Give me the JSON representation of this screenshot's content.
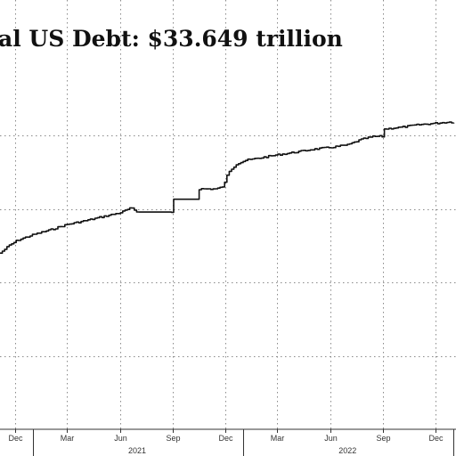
{
  "chart_data": {
    "type": "line",
    "title": "al US Debt: $33.649 trillion",
    "xlabel": "",
    "ylabel": "",
    "x_range": [
      "2020-11-05",
      "2023-01-05"
    ],
    "y_range": [
      0,
      100
    ],
    "grid": true,
    "legend": "none",
    "month_ticks": [
      {
        "label": "Dec",
        "date": "2020-12-01"
      },
      {
        "label": "Mar",
        "date": "2021-03-01"
      },
      {
        "label": "Jun",
        "date": "2021-06-01"
      },
      {
        "label": "Sep",
        "date": "2021-09-01"
      },
      {
        "label": "Dec",
        "date": "2021-12-01"
      },
      {
        "label": "Mar",
        "date": "2022-03-01"
      },
      {
        "label": "Jun",
        "date": "2022-06-01"
      },
      {
        "label": "Sep",
        "date": "2022-09-01"
      },
      {
        "label": "Dec",
        "date": "2022-12-01"
      }
    ],
    "year_labels": [
      {
        "label": "2021",
        "date": "2021-07-01"
      },
      {
        "label": "2022",
        "date": "2022-07-01"
      }
    ],
    "year_boundaries": [
      "2021-01-01",
      "2022-01-01",
      "2023-01-01"
    ],
    "series": [
      {
        "values": [
          {
            "x": "2020-11-05",
            "y": 48.0
          },
          {
            "x": "2020-11-20",
            "y": 50.0
          },
          {
            "x": "2020-12-05",
            "y": 51.5
          },
          {
            "x": "2021-01-01",
            "y": 53.0
          },
          {
            "x": "2021-02-01",
            "y": 54.4
          },
          {
            "x": "2021-03-01",
            "y": 55.8
          },
          {
            "x": "2021-04-01",
            "y": 56.8
          },
          {
            "x": "2021-05-01",
            "y": 57.9
          },
          {
            "x": "2021-06-01",
            "y": 59.0
          },
          {
            "x": "2021-06-20",
            "y": 60.3
          },
          {
            "x": "2021-07-01",
            "y": 59.2
          },
          {
            "x": "2021-08-01",
            "y": 59.2
          },
          {
            "x": "2021-08-30",
            "y": 59.2
          },
          {
            "x": "2021-08-31",
            "y": 62.7
          },
          {
            "x": "2021-10-15",
            "y": 62.7
          },
          {
            "x": "2021-10-16",
            "y": 65.5
          },
          {
            "x": "2021-11-15",
            "y": 65.5
          },
          {
            "x": "2021-11-25",
            "y": 66.0
          },
          {
            "x": "2021-12-01",
            "y": 67.5
          },
          {
            "x": "2021-12-05",
            "y": 70.0
          },
          {
            "x": "2021-12-20",
            "y": 72.3
          },
          {
            "x": "2022-01-05",
            "y": 73.3
          },
          {
            "x": "2022-02-01",
            "y": 74.0
          },
          {
            "x": "2022-03-01",
            "y": 74.8
          },
          {
            "x": "2022-04-01",
            "y": 75.5
          },
          {
            "x": "2022-05-01",
            "y": 76.3
          },
          {
            "x": "2022-06-01",
            "y": 76.8
          },
          {
            "x": "2022-07-01",
            "y": 77.5
          },
          {
            "x": "2022-07-25",
            "y": 79.0
          },
          {
            "x": "2022-08-15",
            "y": 79.8
          },
          {
            "x": "2022-08-31",
            "y": 79.8
          },
          {
            "x": "2022-09-01",
            "y": 81.8
          },
          {
            "x": "2022-10-01",
            "y": 82.3
          },
          {
            "x": "2022-11-01",
            "y": 83.0
          },
          {
            "x": "2022-12-01",
            "y": 83.4
          },
          {
            "x": "2022-12-20",
            "y": 83.7
          },
          {
            "x": "2023-01-05",
            "y": 83.7
          }
        ]
      }
    ]
  }
}
